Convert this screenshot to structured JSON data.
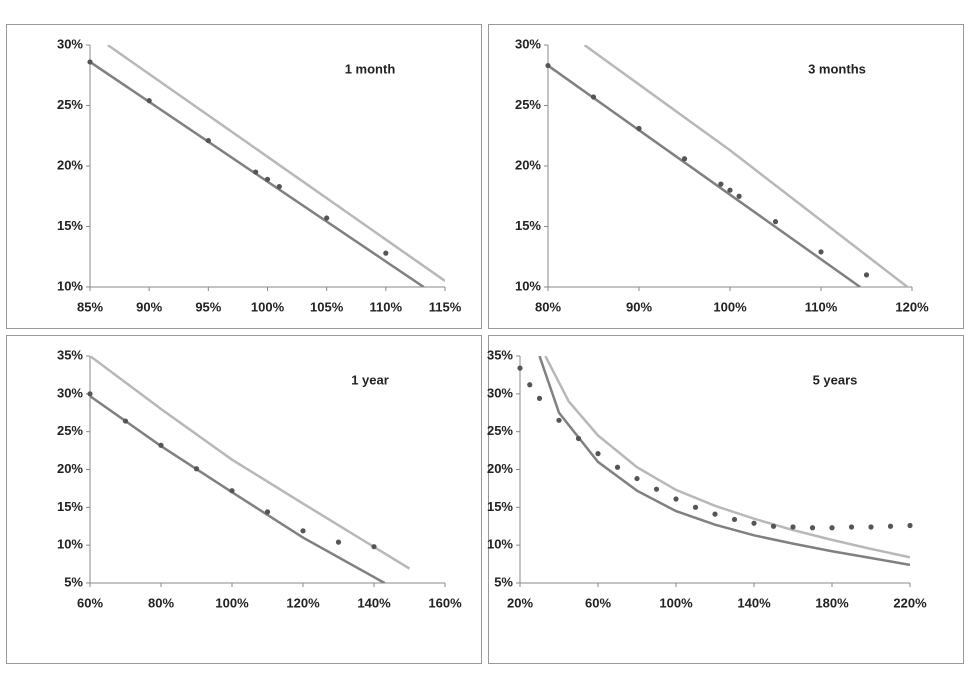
{
  "chart_data": [
    {
      "type": "scatter",
      "label": "1 month",
      "xlim": [
        85,
        115
      ],
      "ylim": [
        10,
        30
      ],
      "xticks": [
        {
          "value": 85,
          "label": "85%"
        },
        {
          "value": 90,
          "label": "90%"
        },
        {
          "value": 95,
          "label": "95%"
        },
        {
          "value": 100,
          "label": "100%"
        },
        {
          "value": 105,
          "label": "105%"
        },
        {
          "value": 110,
          "label": "110%"
        },
        {
          "value": 115,
          "label": "115%"
        }
      ],
      "yticks": [
        {
          "value": 10,
          "label": "10%"
        },
        {
          "value": 15,
          "label": "15%"
        },
        {
          "value": 20,
          "label": "20%"
        },
        {
          "value": 25,
          "label": "25%"
        },
        {
          "value": 30,
          "label": "30%"
        }
      ],
      "series": [
        {
          "mode": "lines",
          "color": "#b8b8b8",
          "x": [
            86.5,
            115
          ],
          "values": [
            30,
            10.5
          ]
        },
        {
          "mode": "lines",
          "color": "#808080",
          "x": [
            85,
            113.2
          ],
          "values": [
            28.6,
            10
          ]
        },
        {
          "mode": "markers",
          "color": "#555555",
          "x": [
            85,
            90,
            95,
            99,
            100,
            101,
            105,
            110
          ],
          "values": [
            28.6,
            25.4,
            22.1,
            19.5,
            18.9,
            18.3,
            15.7,
            12.8
          ]
        }
      ]
    },
    {
      "type": "scatter",
      "label": "3 months",
      "xlim": [
        80,
        120
      ],
      "ylim": [
        10,
        30
      ],
      "xticks": [
        {
          "value": 80,
          "label": "80%"
        },
        {
          "value": 90,
          "label": "90%"
        },
        {
          "value": 100,
          "label": "100%"
        },
        {
          "value": 110,
          "label": "110%"
        },
        {
          "value": 120,
          "label": "120%"
        }
      ],
      "yticks": [
        {
          "value": 10,
          "label": "10%"
        },
        {
          "value": 15,
          "label": "15%"
        },
        {
          "value": 20,
          "label": "20%"
        },
        {
          "value": 25,
          "label": "25%"
        },
        {
          "value": 30,
          "label": "30%"
        }
      ],
      "series": [
        {
          "mode": "lines",
          "color": "#b8b8b8",
          "x": [
            84,
            100,
            119.5
          ],
          "values": [
            30,
            21.3,
            10
          ]
        },
        {
          "mode": "lines",
          "color": "#808080",
          "x": [
            80,
            114.3
          ],
          "values": [
            28.3,
            10
          ]
        },
        {
          "mode": "markers",
          "color": "#555555",
          "x": [
            80,
            85,
            90,
            95,
            99,
            100,
            101,
            105,
            110,
            115
          ],
          "values": [
            28.3,
            25.7,
            23.1,
            20.6,
            18.5,
            18.0,
            17.5,
            15.4,
            12.9,
            11.0
          ]
        }
      ]
    },
    {
      "type": "scatter",
      "label": "1 year",
      "xlim": [
        60,
        160
      ],
      "ylim": [
        5,
        35
      ],
      "xticks": [
        {
          "value": 60,
          "label": "60%"
        },
        {
          "value": 80,
          "label": "80%"
        },
        {
          "value": 100,
          "label": "100%"
        },
        {
          "value": 120,
          "label": "120%"
        },
        {
          "value": 140,
          "label": "140%"
        },
        {
          "value": 160,
          "label": "160%"
        }
      ],
      "yticks": [
        {
          "value": 5,
          "label": "5%"
        },
        {
          "value": 10,
          "label": "10%"
        },
        {
          "value": 15,
          "label": "15%"
        },
        {
          "value": 20,
          "label": "20%"
        },
        {
          "value": 25,
          "label": "25%"
        },
        {
          "value": 30,
          "label": "30%"
        },
        {
          "value": 35,
          "label": "35%"
        }
      ],
      "series": [
        {
          "mode": "lines",
          "color": "#b8b8b8",
          "x": [
            60,
            80,
            100,
            120,
            150
          ],
          "values": [
            35,
            28,
            21.3,
            15.5,
            6.9
          ]
        },
        {
          "mode": "lines",
          "color": "#808080",
          "x": [
            60,
            80,
            100,
            120,
            143
          ],
          "values": [
            29.7,
            23.1,
            17,
            11,
            5
          ]
        },
        {
          "mode": "markers",
          "color": "#555555",
          "x": [
            60,
            70,
            80,
            90,
            100,
            110,
            120,
            130,
            140
          ],
          "values": [
            30,
            26.4,
            23.2,
            20.1,
            17.2,
            14.4,
            11.9,
            10.4,
            9.8
          ]
        }
      ]
    },
    {
      "type": "scatter",
      "label": "5 years",
      "xlim": [
        20,
        220
      ],
      "ylim": [
        5,
        35
      ],
      "xticks": [
        {
          "value": 20,
          "label": "20%"
        },
        {
          "value": 60,
          "label": "60%"
        },
        {
          "value": 100,
          "label": "100%"
        },
        {
          "value": 140,
          "label": "140%"
        },
        {
          "value": 180,
          "label": "180%"
        },
        {
          "value": 220,
          "label": "220%"
        }
      ],
      "yticks": [
        {
          "value": 5,
          "label": "5%"
        },
        {
          "value": 10,
          "label": "10%"
        },
        {
          "value": 15,
          "label": "15%"
        },
        {
          "value": 20,
          "label": "20%"
        },
        {
          "value": 25,
          "label": "25%"
        },
        {
          "value": 30,
          "label": "30%"
        },
        {
          "value": 35,
          "label": "35%"
        }
      ],
      "series": [
        {
          "mode": "lines",
          "color": "#b8b8b8",
          "x": [
            33,
            45,
            60,
            80,
            100,
            120,
            140,
            160,
            180,
            200,
            220
          ],
          "values": [
            35,
            29,
            24.5,
            20.3,
            17.3,
            15.2,
            13.5,
            12,
            10.7,
            9.5,
            8.4
          ]
        },
        {
          "mode": "lines",
          "color": "#808080",
          "x": [
            30,
            40,
            60,
            80,
            100,
            120,
            140,
            160,
            180,
            200,
            220
          ],
          "values": [
            35,
            27.5,
            21,
            17.2,
            14.5,
            12.7,
            11.3,
            10.2,
            9.2,
            8.3,
            7.4
          ]
        },
        {
          "mode": "markers",
          "color": "#555555",
          "x": [
            20,
            25,
            30,
            40,
            50,
            60,
            70,
            80,
            90,
            100,
            110,
            120,
            130,
            140,
            150,
            160,
            170,
            180,
            190,
            200,
            210,
            220
          ],
          "values": [
            33.4,
            31.2,
            29.4,
            26.5,
            24.1,
            22.1,
            20.3,
            18.8,
            17.4,
            16.1,
            15.0,
            14.1,
            13.4,
            12.9,
            12.5,
            12.4,
            12.3,
            12.3,
            12.4,
            12.4,
            12.5,
            12.6
          ]
        }
      ]
    }
  ]
}
